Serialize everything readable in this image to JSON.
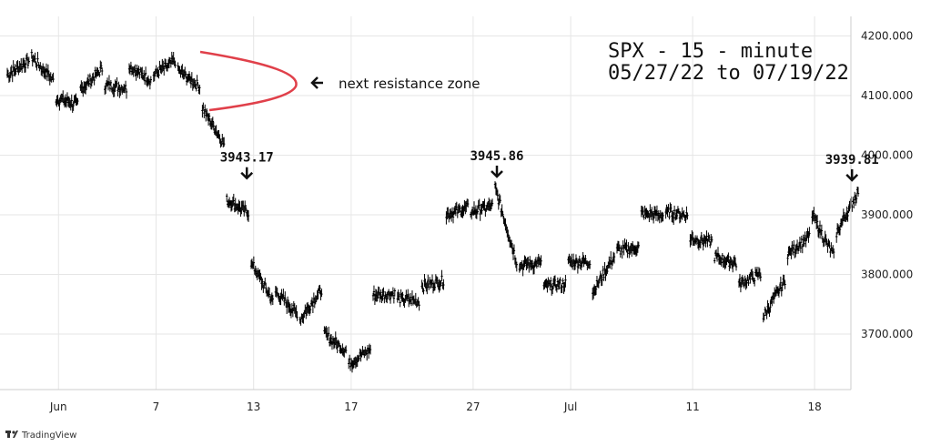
{
  "chart_data": {
    "type": "line",
    "title": "SPX - 15 - minute",
    "subtitle": "05/27/22 to 07/19/22",
    "ylim": [
      3600,
      4230
    ],
    "y_ticks": [
      3700,
      3800,
      3900,
      4000,
      4100,
      4200
    ],
    "y_tick_labels": [
      "3700.000",
      "3800.000",
      "3900.000",
      "4000.000",
      "4100.000",
      "4200.000"
    ],
    "x_ticks": [
      {
        "label": "Jun",
        "date": "2022-06-01"
      },
      {
        "label": "7",
        "date": "2022-06-07"
      },
      {
        "label": "13",
        "date": "2022-06-13"
      },
      {
        "label": "17",
        "date": "2022-06-17"
      },
      {
        "label": "27",
        "date": "2022-06-27"
      },
      {
        "label": "Jul",
        "date": "2022-07-01"
      },
      {
        "label": "11",
        "date": "2022-07-11"
      },
      {
        "label": "18",
        "date": "2022-07-18"
      }
    ],
    "grid": true,
    "series": [
      {
        "color": "#000000",
        "points": [
          [
            "2022-05-27",
            4135
          ],
          [
            "2022-05-27",
            4158
          ],
          [
            "2022-05-31",
            4165
          ],
          [
            "2022-05-31",
            4125
          ],
          [
            "2022-06-01",
            4095
          ],
          [
            "2022-06-01",
            4085
          ],
          [
            "2022-06-02",
            4110
          ],
          [
            "2022-06-02",
            4145
          ],
          [
            "2022-06-03",
            4118
          ],
          [
            "2022-06-03",
            4112
          ],
          [
            "2022-06-06",
            4150
          ],
          [
            "2022-06-06",
            4125
          ],
          [
            "2022-06-07",
            4135
          ],
          [
            "2022-06-07",
            4158
          ],
          [
            "2022-06-08",
            4142
          ],
          [
            "2022-06-08",
            4115
          ],
          [
            "2022-06-09",
            4080
          ],
          [
            "2022-06-09",
            4018
          ],
          [
            "2022-06-10",
            3925
          ],
          [
            "2022-06-10",
            3903
          ],
          [
            "2022-06-13",
            3820
          ],
          [
            "2022-06-13",
            3755
          ],
          [
            "2022-06-14",
            3770
          ],
          [
            "2022-06-14",
            3735
          ],
          [
            "2022-06-15",
            3725
          ],
          [
            "2022-06-15",
            3775
          ],
          [
            "2022-06-16",
            3700
          ],
          [
            "2022-06-16",
            3672
          ],
          [
            "2022-06-17",
            3650
          ],
          [
            "2022-06-17",
            3675
          ],
          [
            "2022-06-21",
            3765
          ],
          [
            "2022-06-21",
            3768
          ],
          [
            "2022-06-22",
            3760
          ],
          [
            "2022-06-22",
            3755
          ],
          [
            "2022-06-23",
            3780
          ],
          [
            "2022-06-23",
            3790
          ],
          [
            "2022-06-24",
            3900
          ],
          [
            "2022-06-24",
            3912
          ],
          [
            "2022-06-27",
            3905
          ],
          [
            "2022-06-27",
            3915
          ],
          [
            "2022-06-28",
            3945.86
          ],
          [
            "2022-06-28",
            3822
          ],
          [
            "2022-06-29",
            3815
          ],
          [
            "2022-06-29",
            3820
          ],
          [
            "2022-06-30",
            3780
          ],
          [
            "2022-06-30",
            3785
          ],
          [
            "2022-07-01",
            3820
          ],
          [
            "2022-07-01",
            3822
          ],
          [
            "2022-07-05",
            3770
          ],
          [
            "2022-07-05",
            3831
          ],
          [
            "2022-07-06",
            3840
          ],
          [
            "2022-07-06",
            3845
          ],
          [
            "2022-07-07",
            3902
          ],
          [
            "2022-07-07",
            3900
          ],
          [
            "2022-07-08",
            3905
          ],
          [
            "2022-07-08",
            3899
          ],
          [
            "2022-07-11",
            3860
          ],
          [
            "2022-07-11",
            3855
          ],
          [
            "2022-07-12",
            3830
          ],
          [
            "2022-07-12",
            3818
          ],
          [
            "2022-07-13",
            3785
          ],
          [
            "2022-07-13",
            3800
          ],
          [
            "2022-07-14",
            3730
          ],
          [
            "2022-07-14",
            3790
          ],
          [
            "2022-07-15",
            3835
          ],
          [
            "2022-07-15",
            3863
          ],
          [
            "2022-07-18",
            3900
          ],
          [
            "2022-07-18",
            3830
          ],
          [
            "2022-07-19",
            3870
          ],
          [
            "2022-07-19",
            3939.81
          ]
        ]
      }
    ],
    "annotations": [
      {
        "label": "3943.17",
        "date": "2022-06-10",
        "value": 3943.17
      },
      {
        "label": "3945.86",
        "date": "2022-06-28",
        "value": 3945.86
      },
      {
        "label": "3939.81",
        "date": "2022-07-19",
        "value": 3939.81
      }
    ],
    "resistance_note": "next resistance zone",
    "resistance_color": "#e0404a"
  },
  "branding": {
    "logo_text": "TradingView"
  },
  "colors": {
    "grid": "#e6e6e6",
    "axis": "#cccccc",
    "series": "#000000",
    "resistance": "#e0404a"
  }
}
